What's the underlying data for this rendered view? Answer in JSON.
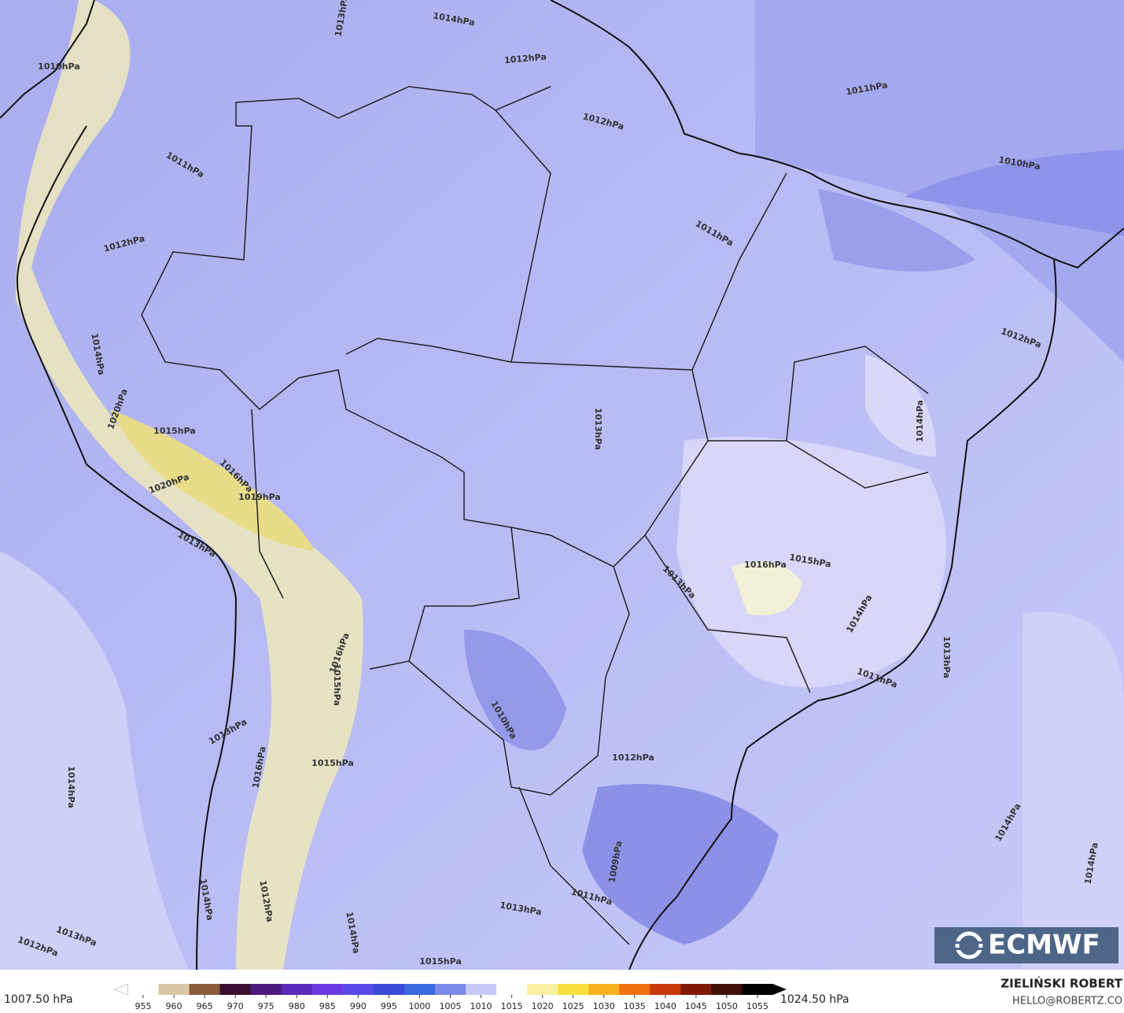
{
  "map": {
    "isobar_labels": [
      "1010hPa",
      "1013hPa",
      "1014hPa",
      "1012hPa",
      "1011hPa",
      "1012hPa",
      "1010hPa",
      "1011hPa",
      "1012hPa",
      "1011hPa",
      "1012hPa",
      "1013hPa",
      "1014hPa",
      "1015hPa",
      "1016hPa",
      "1015hPa",
      "1013hPa",
      "1014hPa",
      "1013hPa",
      "1011hPa",
      "1010hPa",
      "1013hPa",
      "1012hPa",
      "1015hPa",
      "1014hPa",
      "1009hPa",
      "1014hPa",
      "1014hPa",
      "1011hPa",
      "1013hPa",
      "1014hPa",
      "1012hPa",
      "1014hPa",
      "1013hPa",
      "1012hPa",
      "1015hPa",
      "1016hPa",
      "1019hPa",
      "1020hPa",
      "1013hPa",
      "1016hPa",
      "1015hPa",
      "1016hPa",
      "1014hPa",
      "1020hPa"
    ],
    "logo": "ECMWF"
  },
  "colorbar": {
    "ticks": [
      955,
      960,
      965,
      970,
      975,
      980,
      985,
      990,
      995,
      1000,
      1005,
      1010,
      1015,
      1020,
      1025,
      1030,
      1035,
      1040,
      1045,
      1050,
      1055
    ],
    "colors": [
      "#ffffff",
      "#d9c7a8",
      "#8a5a3a",
      "#3a1030",
      "#4a1a7a",
      "#5a2ab8",
      "#6a3ae0",
      "#5a4ae8",
      "#3a4ad8",
      "#3a6ae0",
      "#7a8ae8",
      "#c8c8f8",
      "#ffffff",
      "#f8f0a0",
      "#f8e040",
      "#f8b020",
      "#f07010",
      "#c83808",
      "#801808",
      "#401008",
      "#000000"
    ],
    "min_label": "1007.50 hPa",
    "max_label": "1024.50 hPa"
  },
  "credit": {
    "author": "ZIELIŃSKI ROBERT",
    "email": "HELLO@ROBERTZ.CO"
  }
}
